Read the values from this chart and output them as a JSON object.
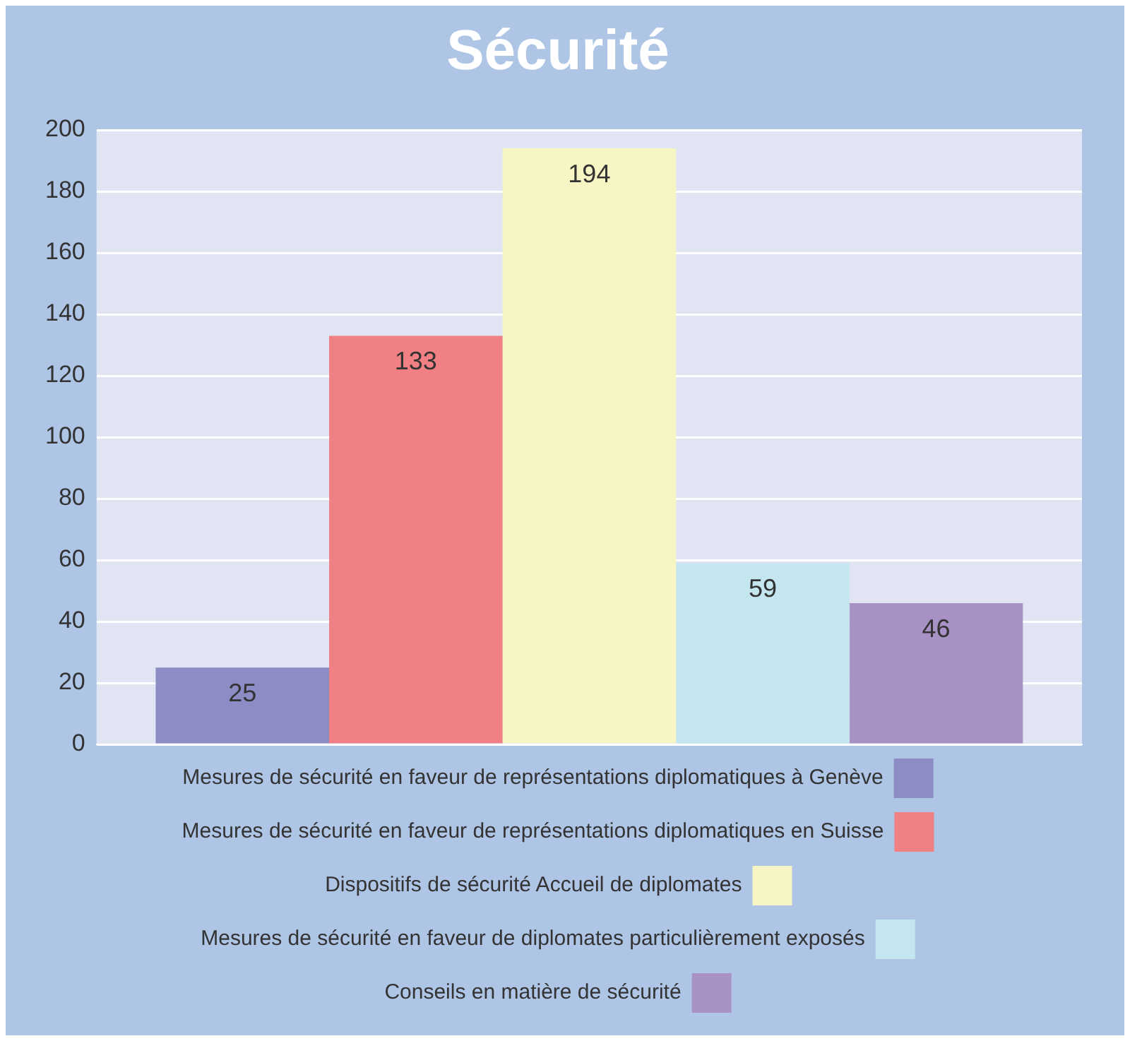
{
  "chart_data": {
    "type": "bar",
    "title": "Sécurité",
    "categories": [
      null
    ],
    "series": [
      {
        "name": "Mesures de sécurité en faveur de représentations diplomatiques à Genève",
        "color": "#8c8dc5",
        "values": [
          25
        ]
      },
      {
        "name": "Mesures de sécurité en faveur de représentations diplomatiques en Suisse",
        "color": "#f08083",
        "values": [
          133
        ]
      },
      {
        "name": "Dispositifs de sécurité Accueil de diplomates",
        "color": "#f8f5c5",
        "values": [
          194
        ]
      },
      {
        "name": "Mesures de sécurité en faveur de diplomates particulièrement exposés",
        "color": "#c3e6ef",
        "values": [
          59
        ]
      },
      {
        "name": "Conseils en matière de sécurité",
        "color": "#a891c5",
        "values": [
          46
        ]
      }
    ],
    "ylim": [
      0,
      200
    ],
    "yticks": [
      0,
      20,
      40,
      60,
      80,
      100,
      120,
      140,
      160,
      180,
      200
    ],
    "grid": "y",
    "legend": "bottom",
    "tick_labels": "y",
    "data_labels": true
  }
}
